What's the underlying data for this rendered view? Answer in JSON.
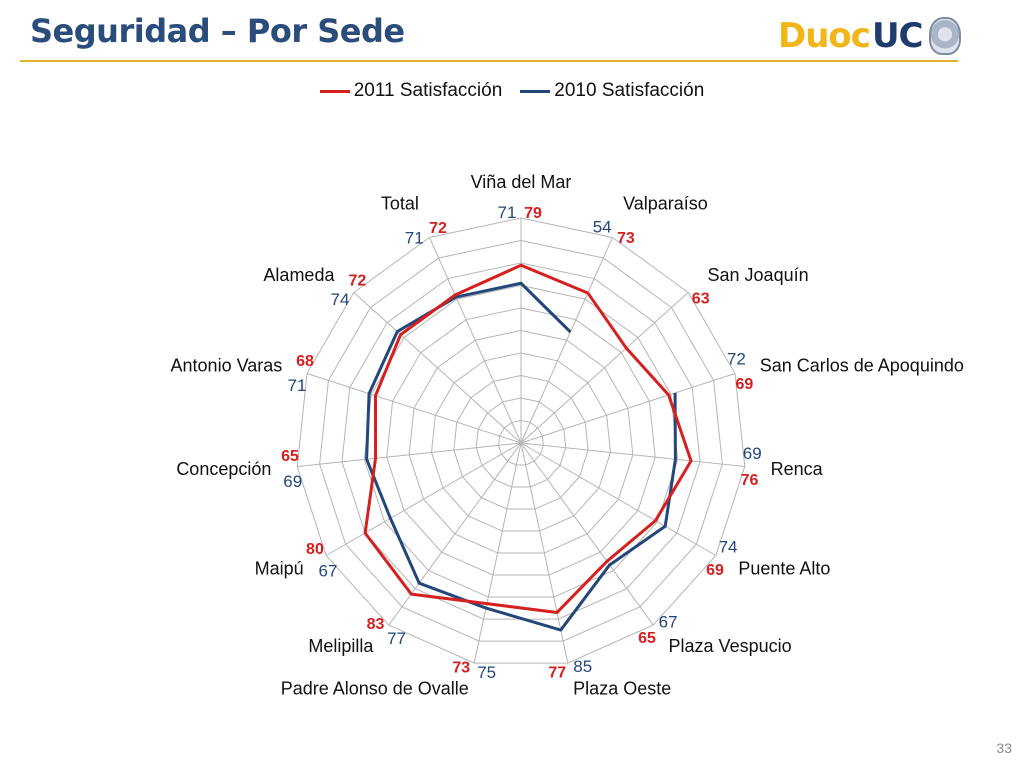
{
  "header": {
    "title": "Seguridad – Por Sede",
    "logo_primary": "Duoc",
    "logo_secondary": "UC"
  },
  "footer": {
    "page_number": "33"
  },
  "colors": {
    "series_2011": "#d62020",
    "series_2010": "#24477a",
    "grid": "#b5b5b5",
    "title": "#2a4d7c",
    "accent_rule": "#e3b12a"
  },
  "chart_data": {
    "type": "radar",
    "title": "",
    "categories": [
      "Viña del Mar",
      "Valparaíso",
      "San Joaquín",
      "San Carlos de Apoquindo",
      "Renca",
      "Puente Alto",
      "Plaza Vespucio",
      "Plaza Oeste",
      "Padre Alonso de Ovalle",
      "Melipilla",
      "Maipú",
      "Concepción",
      "Antonio Varas",
      "Alameda",
      "Total"
    ],
    "series": [
      {
        "name": "2011 Satisfacción",
        "values": [
          79,
          73,
          63,
          69,
          76,
          69,
          65,
          77,
          73,
          83,
          80,
          65,
          68,
          72,
          72
        ]
      },
      {
        "name": "2010 Satisfacción",
        "values": [
          71,
          54,
          null,
          72,
          69,
          74,
          67,
          85,
          75,
          77,
          67,
          69,
          71,
          74,
          71
        ]
      }
    ],
    "value_labels_2011": [
      "79",
      "73",
      "63",
      "69",
      "76",
      "69",
      "65",
      "77",
      "73",
      "83",
      "80",
      "65",
      "68",
      "72",
      "72"
    ],
    "value_labels_2010": [
      "71",
      "54",
      "",
      "72",
      "69",
      "74",
      "67",
      "85",
      "75",
      "77",
      "67",
      "69",
      "71",
      "74",
      "71"
    ],
    "rlim": [
      0,
      100
    ],
    "grid": true,
    "legend_position": "top"
  }
}
